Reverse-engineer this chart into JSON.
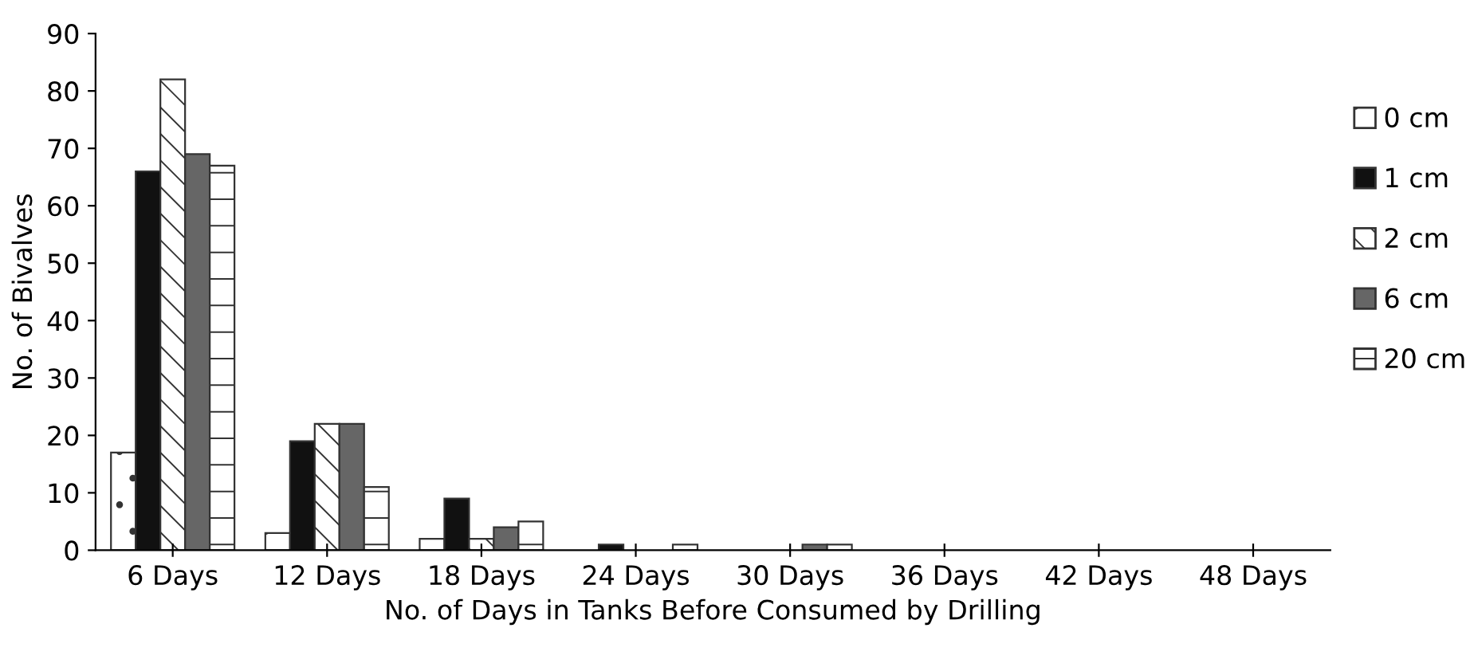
{
  "chart_data": {
    "type": "bar",
    "xlabel": "No. of Days in Tanks Before Consumed by Drilling",
    "ylabel": "No. of Bivalves",
    "categories": [
      "6 Days",
      "12 Days",
      "18 Days",
      "24 Days",
      "30 Days",
      "36 Days",
      "42 Days",
      "48 Days"
    ],
    "series": [
      {
        "name": "0 cm",
        "color": "#333333",
        "values": [
          17,
          3,
          2,
          0,
          0,
          0,
          0,
          0
        ]
      },
      {
        "name": "1 cm",
        "color": "#111111",
        "values": [
          66,
          19,
          9,
          1,
          0,
          0,
          0,
          0
        ]
      },
      {
        "name": "2 cm",
        "color": "#333333",
        "values": [
          82,
          22,
          2,
          0,
          0,
          0,
          0,
          0
        ]
      },
      {
        "name": "6 cm",
        "color": "#666666",
        "values": [
          69,
          22,
          4,
          0,
          1,
          0,
          0,
          0
        ]
      },
      {
        "name": "20 cm",
        "color": "#333333",
        "values": [
          67,
          11,
          5,
          1,
          1,
          0,
          0,
          0
        ]
      }
    ],
    "ylim": [
      0,
      90
    ],
    "yticks": [
      0,
      10,
      20,
      30,
      40,
      50,
      60,
      70,
      80,
      90
    ],
    "grid": false,
    "legend": "right"
  }
}
